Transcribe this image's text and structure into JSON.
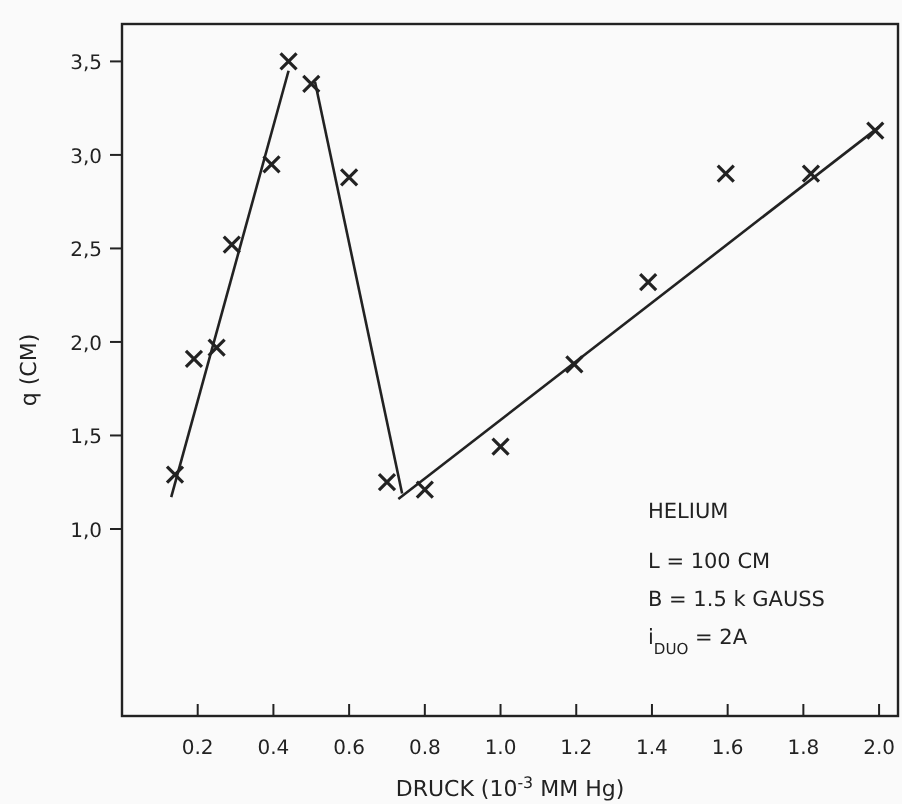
{
  "chart_data": {
    "type": "scatter",
    "xlabel": "DRUCK (10$^{-3}$ MM Hg)",
    "ylabel": "q (CM)",
    "xlim": [
      0,
      2.05
    ],
    "ylim": [
      0,
      3.7
    ],
    "xticks": [
      0.2,
      0.4,
      0.6,
      0.8,
      {
        "value": 1.0,
        "label": "1.0"
      },
      1.2,
      1.4,
      1.6,
      1.8,
      {
        "value": 2.0,
        "label": "2.0"
      }
    ],
    "yticks": [
      {
        "value": 1.0,
        "label": "1,0"
      },
      {
        "value": 1.5,
        "label": "1,5"
      },
      {
        "value": 2.0,
        "label": "2,0"
      },
      {
        "value": 2.5,
        "label": "2,5"
      },
      {
        "value": 3.0,
        "label": "3,0"
      },
      {
        "value": 3.5,
        "label": "3,5"
      }
    ],
    "grid": false,
    "marker": "cross",
    "line_style": "solid",
    "series": [
      {
        "color": "#222222",
        "x": [
          0.14,
          0.19,
          0.25,
          0.29,
          0.395,
          0.44,
          0.5,
          0.6,
          0.7,
          0.8,
          1.0,
          1.195,
          1.39,
          1.595,
          1.82,
          1.99
        ],
        "values": [
          1.29,
          1.91,
          1.97,
          2.52,
          2.95,
          3.5,
          3.38,
          2.88,
          1.25,
          1.21,
          1.44,
          1.88,
          2.32,
          2.9,
          2.9,
          3.13
        ]
      },
      {
        "type": "line",
        "marker": "none",
        "color": "#222222",
        "x": [
          0.13,
          0.44
        ],
        "values": [
          1.17,
          3.45
        ]
      },
      {
        "type": "line",
        "marker": "none",
        "color": "#222222",
        "x": [
          0.51,
          0.74
        ],
        "values": [
          3.39,
          1.19
        ]
      },
      {
        "type": "line",
        "marker": "none",
        "color": "#222222",
        "x": [
          0.73,
          2.0
        ],
        "values": [
          1.16,
          3.15
        ]
      }
    ],
    "annotations": [
      "HELIUM",
      "L = 100 CM",
      "B = 1.5 k GAUSS",
      "i$_{DUO}$ = 2A"
    ]
  }
}
